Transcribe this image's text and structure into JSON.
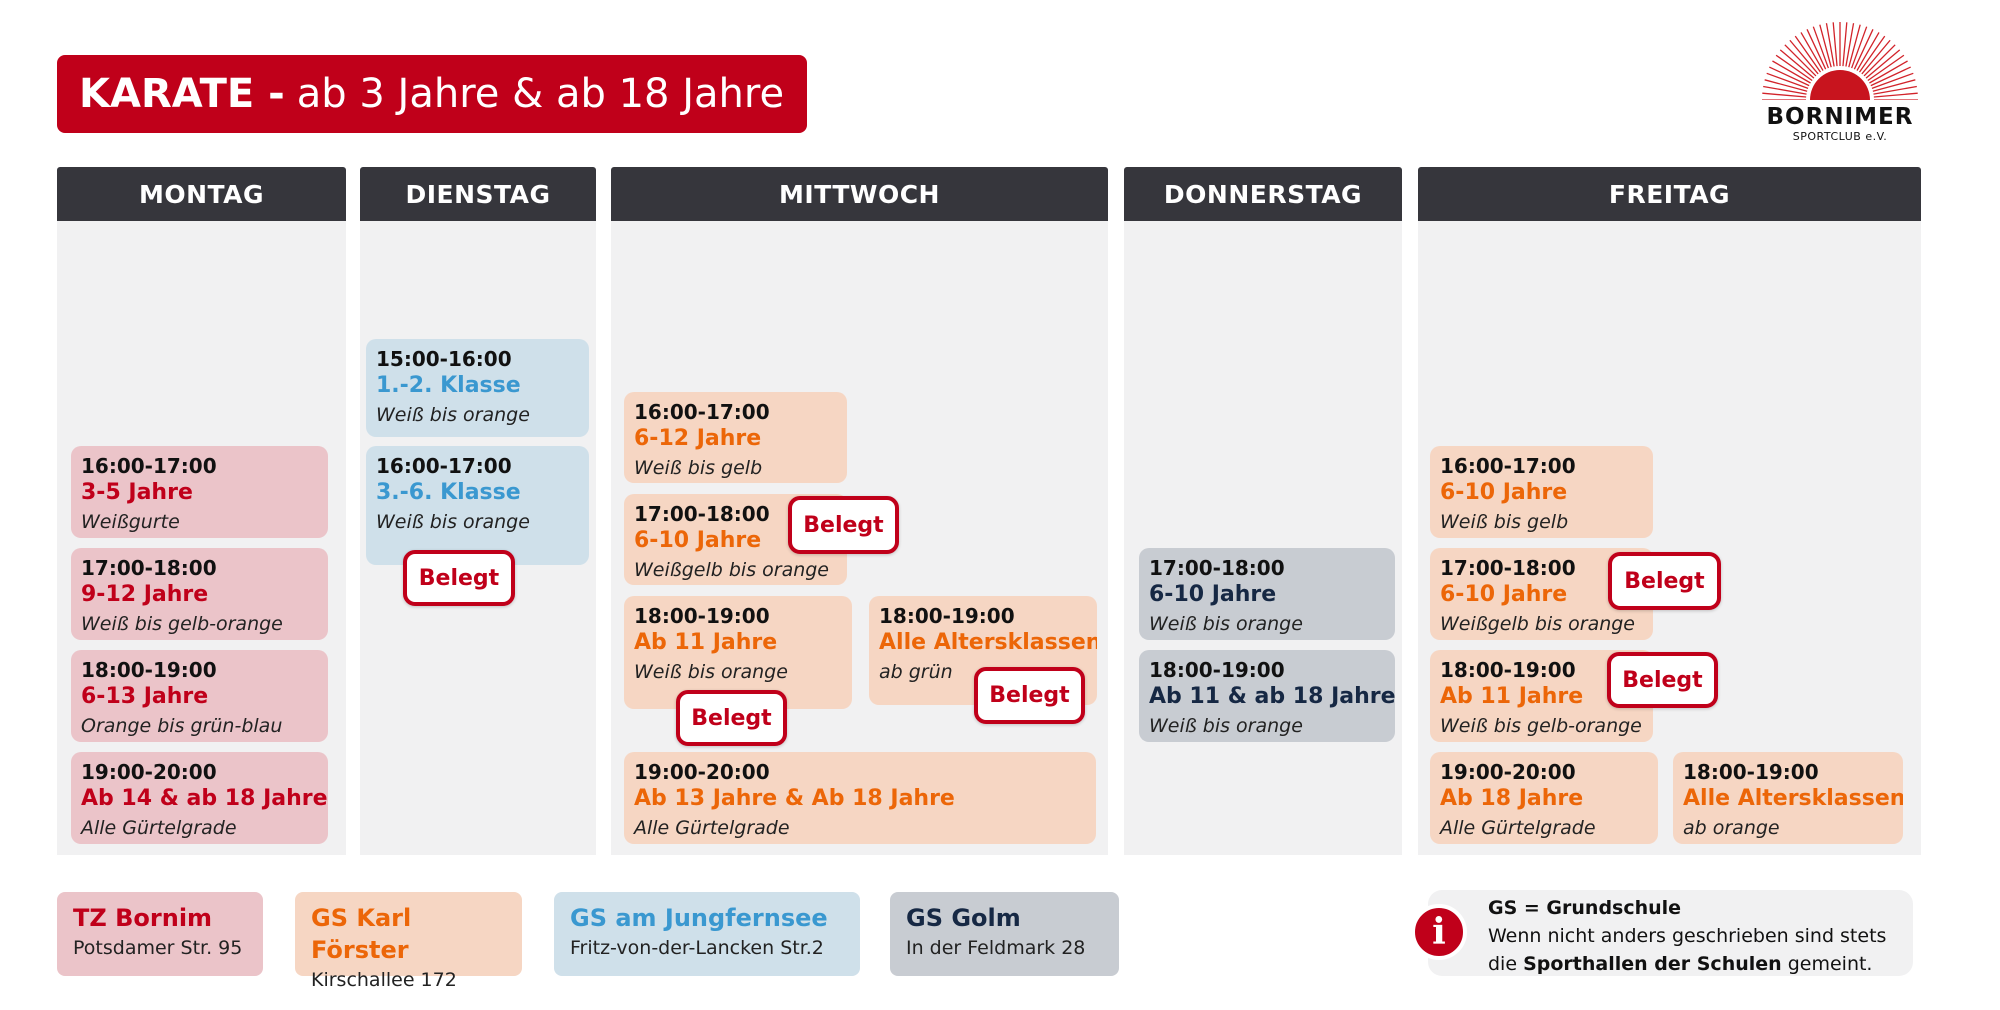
{
  "title": {
    "bold": "KARATE -",
    "rest": "ab 3 Jahre & ab 18 Jahre"
  },
  "logo": {
    "name": "BORNIMER",
    "sub": "SPORTCLUB e.V."
  },
  "colors": {
    "pink": "#ebc4c9",
    "red": "#c0001a",
    "orange": "#f6d6c3",
    "orange_text": "#ec6608",
    "blue": "#cfe0ea",
    "blue_text": "#3a98d0",
    "grey": "#c8ccd2",
    "header": "#36363c"
  },
  "belegt_label": "Belegt",
  "days": [
    {
      "name": "MONTAG",
      "cards": [
        {
          "time": "16:00-17:00",
          "group": "3-5 Jahre",
          "level": "Weißgurte",
          "color": "pink",
          "belegt": false
        },
        {
          "time": "17:00-18:00",
          "group": "9-12 Jahre",
          "level": "Weiß bis gelb-orange",
          "color": "pink",
          "belegt": false
        },
        {
          "time": "18:00-19:00",
          "group": "6-13 Jahre",
          "level": "Orange bis grün-blau",
          "color": "pink",
          "belegt": false
        },
        {
          "time": "19:00-20:00",
          "group": "Ab 14 & ab 18 Jahre",
          "level": "Alle Gürtelgrade",
          "color": "pink",
          "belegt": false
        }
      ]
    },
    {
      "name": "DIENSTAG",
      "cards": [
        {
          "time": "15:00-16:00",
          "group": "1.-2. Klasse",
          "level": "Weiß bis orange",
          "color": "blue",
          "belegt": false
        },
        {
          "time": "16:00-17:00",
          "group": "3.-6. Klasse",
          "level": "Weiß bis orange",
          "color": "blue",
          "belegt": true
        }
      ]
    },
    {
      "name": "MITTWOCH",
      "cards": [
        {
          "time": "16:00-17:00",
          "group": "6-12 Jahre",
          "level": "Weiß bis gelb",
          "color": "orange",
          "belegt": false
        },
        {
          "time": "17:00-18:00",
          "group": "6-10 Jahre",
          "level": "Weißgelb bis orange",
          "color": "orange",
          "belegt": true
        },
        {
          "time": "18:00-19:00",
          "group": "Ab 11 Jahre",
          "level": "Weiß bis orange",
          "color": "orange",
          "belegt": true
        },
        {
          "time": "18:00-19:00",
          "group": "Alle Altersklassen",
          "level": "ab grün",
          "color": "orange",
          "belegt": true
        },
        {
          "time": "19:00-20:00",
          "group": "Ab 13 Jahre & Ab 18 Jahre",
          "level": "Alle Gürtelgrade",
          "color": "orange",
          "belegt": false
        }
      ]
    },
    {
      "name": "DONNERSTAG",
      "cards": [
        {
          "time": "17:00-18:00",
          "group": "6-10 Jahre",
          "level": "Weiß bis orange",
          "color": "grey",
          "belegt": false
        },
        {
          "time": "18:00-19:00",
          "group": "Ab 11 & ab 18 Jahre",
          "level": "Weiß bis orange",
          "color": "grey",
          "belegt": false
        }
      ]
    },
    {
      "name": "FREITAG",
      "cards": [
        {
          "time": "16:00-17:00",
          "group": "6-10 Jahre",
          "level": "Weiß bis gelb",
          "color": "orange",
          "belegt": false
        },
        {
          "time": "17:00-18:00",
          "group": "6-10 Jahre",
          "level": "Weißgelb bis orange",
          "color": "orange",
          "belegt": true
        },
        {
          "time": "18:00-19:00",
          "group": "Ab 11 Jahre",
          "level": "Weiß bis gelb-orange",
          "color": "orange",
          "belegt": true
        },
        {
          "time": "19:00-20:00",
          "group": "Ab 18 Jahre",
          "level": "Alle Gürtelgrade",
          "color": "orange",
          "belegt": false
        },
        {
          "time": "18:00-19:00",
          "group": "Alle Altersklassen",
          "level": "ab orange",
          "color": "orange",
          "belegt": false
        }
      ]
    }
  ],
  "legend": [
    {
      "name": "TZ Bornim",
      "address": "Potsdamer Str. 95",
      "color": "pink"
    },
    {
      "name": "GS Karl Förster",
      "address": "Kirschallee 172",
      "color": "orange"
    },
    {
      "name": "GS am Jungfernsee",
      "address": "Fritz-von-der-Lancken Str.2",
      "color": "blue"
    },
    {
      "name": "GS Golm",
      "address": "In der Feldmark 28",
      "color": "grey"
    }
  ],
  "info": {
    "icon": "info-icon",
    "heading": "GS = Grundschule",
    "line1": "Wenn nicht anders geschrieben sind stets",
    "line2_pre": "die",
    "line2_bold": "Sporthallen der Schulen",
    "line2_post": "gemeint."
  }
}
